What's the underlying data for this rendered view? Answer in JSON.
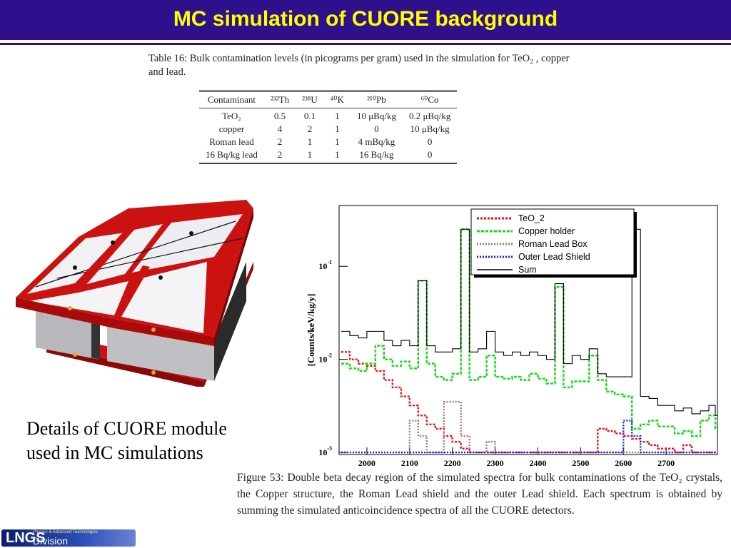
{
  "header": {
    "title": "MC simulation of CUORE background"
  },
  "table": {
    "caption": "Table 16: Bulk contamination levels (in picograms per gram) used in the simulation for TeO₂ , copper and lead.",
    "columns": [
      "Contaminant",
      "²³²Th",
      "²³⁸U",
      "⁴⁰K",
      "²¹⁰Pb",
      "⁶⁰Co"
    ],
    "rows": [
      [
        "TeO₂",
        "0.5",
        "0.1",
        "1",
        "10 μBq/kg",
        "0.2 μBq/kg"
      ],
      [
        "copper",
        "4",
        "2",
        "1",
        "0",
        "10 μBq/kg"
      ],
      [
        "Roman lead",
        "2",
        "1",
        "1",
        "4 mBq/kg",
        "0"
      ],
      [
        "16 Bq/kg lead",
        "2",
        "1",
        "1",
        "16 Bq/kg",
        "0"
      ]
    ]
  },
  "module": {
    "caption_line1": "Details of CUORE module",
    "caption_line2": "used in MC simulations"
  },
  "figure": {
    "caption": "Figure 53: Double beta decay region of the simulated spectra for bulk contaminations of the TeO₂ crystals, the Copper structure, the Roman Lead shield and the outer Lead shield. Each spectrum is obtained by summing the simulated anticoincidence spectra of all the CUORE detectors."
  },
  "logo": {
    "letters": "LNGS",
    "text": "Division",
    "small": "Physics & Advanced Technologies"
  },
  "chart_data": {
    "type": "line",
    "ylabel": "[Counts/keV/kg/y]",
    "xlim": [
      1935,
      2820
    ],
    "ylim": [
      0.00095,
      0.45
    ],
    "log_y": true,
    "x_ticks": [
      2000,
      2100,
      2200,
      2300,
      2400,
      2500,
      2600,
      2700
    ],
    "y_ticks": [
      {
        "value": 0.1,
        "mant": "10",
        "exp": "-1"
      },
      {
        "value": 0.01,
        "mant": "10",
        "exp": "-2"
      },
      {
        "value": 0.001,
        "mant": "10",
        "exp": "-3"
      }
    ],
    "legend_position": "top-right",
    "x": [
      1940,
      1960,
      1980,
      2000,
      2020,
      2040,
      2060,
      2080,
      2100,
      2120,
      2140,
      2160,
      2180,
      2200,
      2220,
      2240,
      2260,
      2280,
      2300,
      2320,
      2340,
      2360,
      2380,
      2400,
      2420,
      2440,
      2460,
      2480,
      2500,
      2520,
      2540,
      2560,
      2580,
      2600,
      2620,
      2640,
      2660,
      2680,
      2700,
      2720,
      2740,
      2760,
      2780,
      2800,
      2815
    ],
    "series": [
      {
        "name": "TeO_2",
        "color": "#ee1111",
        "dash": "3,2",
        "values": [
          0.012,
          0.01,
          0.009,
          0.0085,
          0.0075,
          0.006,
          0.005,
          0.004,
          0.0032,
          0.0025,
          0.002,
          0.0018,
          0.0015,
          0.0013,
          0.0011,
          0.001,
          0.001,
          0.001,
          0.001,
          0.001,
          0.001,
          0.001,
          0.001,
          0.001,
          0.001,
          0.001,
          0.001,
          0.001,
          0.001,
          0.001,
          0.0018,
          0.0017,
          0.0016,
          0.0015,
          0.0014,
          0.0013,
          0.0012,
          0.0011,
          0.0011,
          0.001,
          0.0012,
          0.001,
          0.001,
          0.001,
          0.001
        ]
      },
      {
        "name": "Copper holder",
        "color": "#11dd11",
        "dash": "4,2",
        "values": [
          0.009,
          0.008,
          0.0075,
          0.009,
          0.014,
          0.01,
          0.0085,
          0.0095,
          0.008,
          0.07,
          0.009,
          0.0065,
          0.006,
          0.007,
          0.25,
          0.006,
          0.0065,
          0.011,
          0.0065,
          0.0062,
          0.0065,
          0.006,
          0.007,
          0.0062,
          0.0055,
          0.06,
          0.005,
          0.0058,
          0.0058,
          0.011,
          0.006,
          0.0045,
          0.0042,
          0.004,
          0.0018,
          0.002,
          0.0022,
          0.0019,
          0.0019,
          0.0016,
          0.0017,
          0.0015,
          0.0022,
          0.0025,
          0.0018
        ]
      },
      {
        "name": "Roman Lead Box",
        "color": "#aa7777",
        "dash": "2,2",
        "values": [
          0.001,
          0.001,
          0.001,
          0.001,
          0.001,
          0.001,
          0.001,
          0.001,
          0.0022,
          0.0015,
          0.001,
          0.001,
          0.0035,
          0.0035,
          0.0015,
          0.001,
          0.001,
          0.0013,
          0.001,
          0.001,
          0.001,
          0.001,
          0.001,
          0.001,
          0.001,
          0.001,
          0.001,
          0.001,
          0.001,
          0.001,
          0.001,
          0.001,
          0.001,
          0.001,
          0.001,
          0.001,
          0.001,
          0.001,
          0.001,
          0.001,
          0.001,
          0.001,
          0.001,
          0.001,
          0.001
        ]
      },
      {
        "name": "Outer Lead Shield",
        "color": "#1122ee",
        "dash": "2,2",
        "values": [
          0.001,
          0.001,
          0.001,
          0.001,
          0.001,
          0.001,
          0.001,
          0.001,
          0.001,
          0.001,
          0.001,
          0.001,
          0.001,
          0.001,
          0.001,
          0.001,
          0.001,
          0.001,
          0.001,
          0.001,
          0.001,
          0.001,
          0.001,
          0.001,
          0.001,
          0.001,
          0.001,
          0.001,
          0.001,
          0.001,
          0.001,
          0.001,
          0.001,
          0.0022,
          0.0015,
          0.001,
          0.001,
          0.001,
          0.001,
          0.001,
          0.001,
          0.001,
          0.001,
          0.001,
          0.001
        ]
      },
      {
        "name": "Sum",
        "color": "#000000",
        "dash": "",
        "values": [
          0.02,
          0.018,
          0.017,
          0.02,
          0.02,
          0.016,
          0.014,
          0.016,
          0.014,
          0.07,
          0.014,
          0.012,
          0.012,
          0.013,
          0.25,
          0.012,
          0.013,
          0.02,
          0.012,
          0.011,
          0.012,
          0.011,
          0.012,
          0.011,
          0.01,
          0.065,
          0.009,
          0.011,
          0.01,
          0.013,
          0.007,
          0.0065,
          0.0065,
          0.0065,
          0.25,
          0.004,
          0.0038,
          0.0032,
          0.0032,
          0.0028,
          0.003,
          0.0026,
          0.0028,
          0.0032,
          0.0025
        ]
      }
    ]
  }
}
